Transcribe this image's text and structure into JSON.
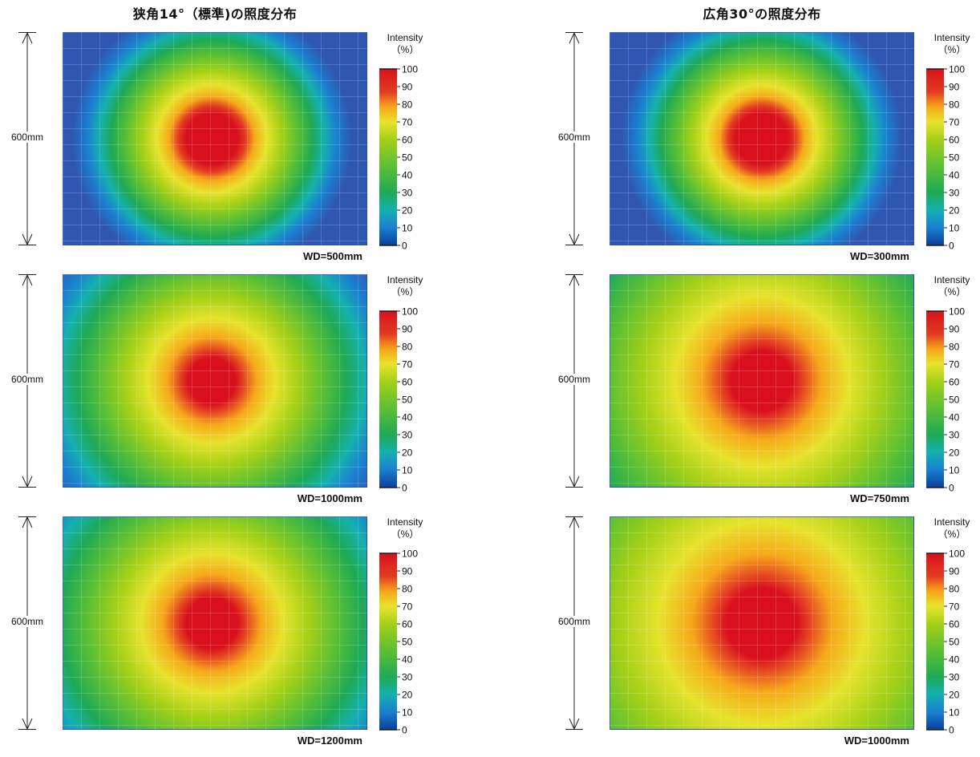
{
  "titles": {
    "left": "狭角14°（標準)の照度分布",
    "right": "広角30°の照度分布"
  },
  "legend": {
    "title_line1": "Intensity",
    "title_line2": "（%）",
    "ticks": [
      "0",
      "10",
      "20",
      "30",
      "40",
      "50",
      "60",
      "70",
      "80",
      "90",
      "100"
    ]
  },
  "chart_data": [
    {
      "type": "heatmap",
      "column": "left",
      "ylabel": "600mm",
      "caption": "WD=500mm",
      "center": [
        0.49,
        0.5
      ],
      "spot_radius": 0.11,
      "spread": 1.0
    },
    {
      "type": "heatmap",
      "column": "right",
      "ylabel": "600mm",
      "caption": "WD=300mm",
      "center": [
        0.5,
        0.5
      ],
      "spot_radius": 0.11,
      "spread": 1.0
    },
    {
      "type": "heatmap",
      "column": "left",
      "ylabel": "600mm",
      "caption": "WD=1000mm",
      "center": [
        0.49,
        0.5
      ],
      "spot_radius": 0.1,
      "spread": 1.55
    },
    {
      "type": "heatmap",
      "column": "right",
      "ylabel": "600mm",
      "caption": "WD=750mm",
      "center": [
        0.5,
        0.5
      ],
      "spot_radius": 0.13,
      "spread": 2.2
    },
    {
      "type": "heatmap",
      "column": "left",
      "ylabel": "600mm",
      "caption": "WD=1200mm",
      "center": [
        0.49,
        0.5
      ],
      "spot_radius": 0.11,
      "spread": 1.75
    },
    {
      "type": "heatmap",
      "column": "right",
      "ylabel": "600mm",
      "caption": "WD=1000mm",
      "center": [
        0.5,
        0.5
      ],
      "spot_radius": 0.15,
      "spread": 2.7
    }
  ],
  "colors": {
    "scale": [
      "#0a3f9a",
      "#1a7fd0",
      "#15b0b0",
      "#1faa55",
      "#5cc033",
      "#a4d018",
      "#e7e32c",
      "#f6a91b",
      "#f07a1e",
      "#e23b22",
      "#d8111d"
    ],
    "background": "#2f56b0",
    "tick_bar": "#1a1a1a"
  }
}
